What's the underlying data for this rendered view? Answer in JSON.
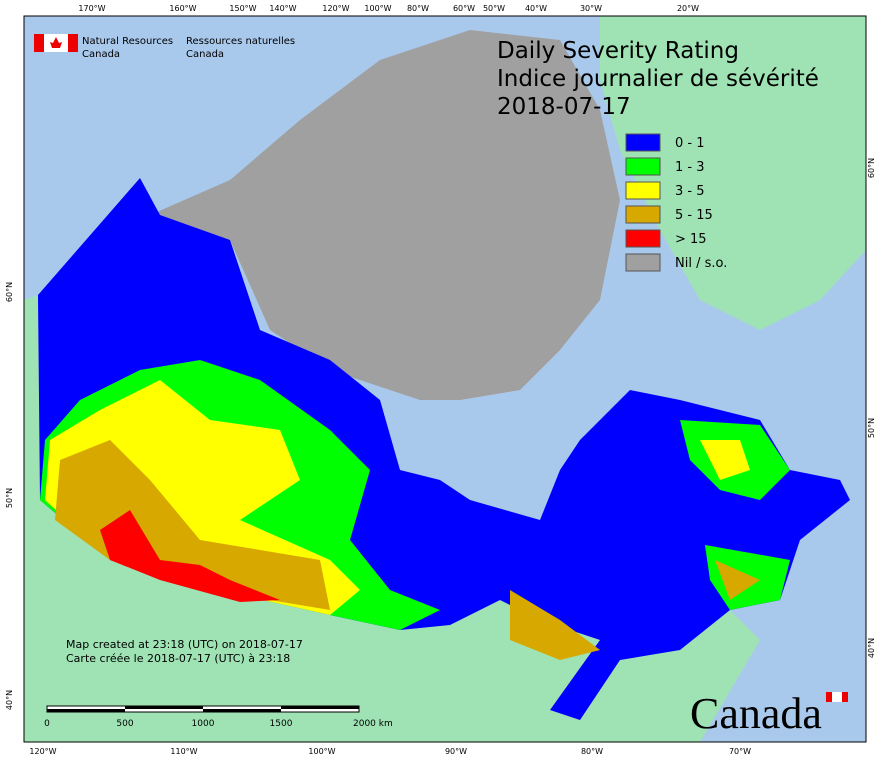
{
  "header": {
    "agency_en": [
      "Natural Resources",
      "Canada"
    ],
    "agency_fr": [
      "Ressources naturelles",
      "Canada"
    ]
  },
  "title": [
    "Daily Severity Rating",
    "Indice journalier de sévérité",
    "2018-07-17"
  ],
  "legend": [
    {
      "label": "0 - 1",
      "color": "#0000ff"
    },
    {
      "label": "1 - 3",
      "color": "#00ff00"
    },
    {
      "label": "3 - 5",
      "color": "#ffff00"
    },
    {
      "label": "5 - 15",
      "color": "#d6a800"
    },
    {
      "label": "> 15",
      "color": "#ff0000"
    },
    {
      "label": "Nil / s.o.",
      "color": "#a0a0a0"
    }
  ],
  "graticule": {
    "top": [
      "170°W",
      "160°W",
      "150°W",
      "140°W",
      "120°W",
      "100°W",
      "80°W",
      "60°W",
      "50°W",
      "40°W",
      "30°W",
      "20°W"
    ],
    "bottom": [
      "120°W",
      "110°W",
      "100°W",
      "90°W",
      "80°W",
      "70°W"
    ],
    "left": [
      "60°N",
      "50°N",
      "40°N"
    ],
    "right": [
      "60°N",
      "50°N",
      "40°N"
    ]
  },
  "notes": [
    "Map created at 23:18 (UTC) on 2018-07-17",
    "Carte créée le 2018-07-17 (UTC) à 23:18"
  ],
  "scale_bar": [
    "0",
    "500",
    "1000",
    "1500",
    "2000 km"
  ],
  "wordmark": "Canada"
}
